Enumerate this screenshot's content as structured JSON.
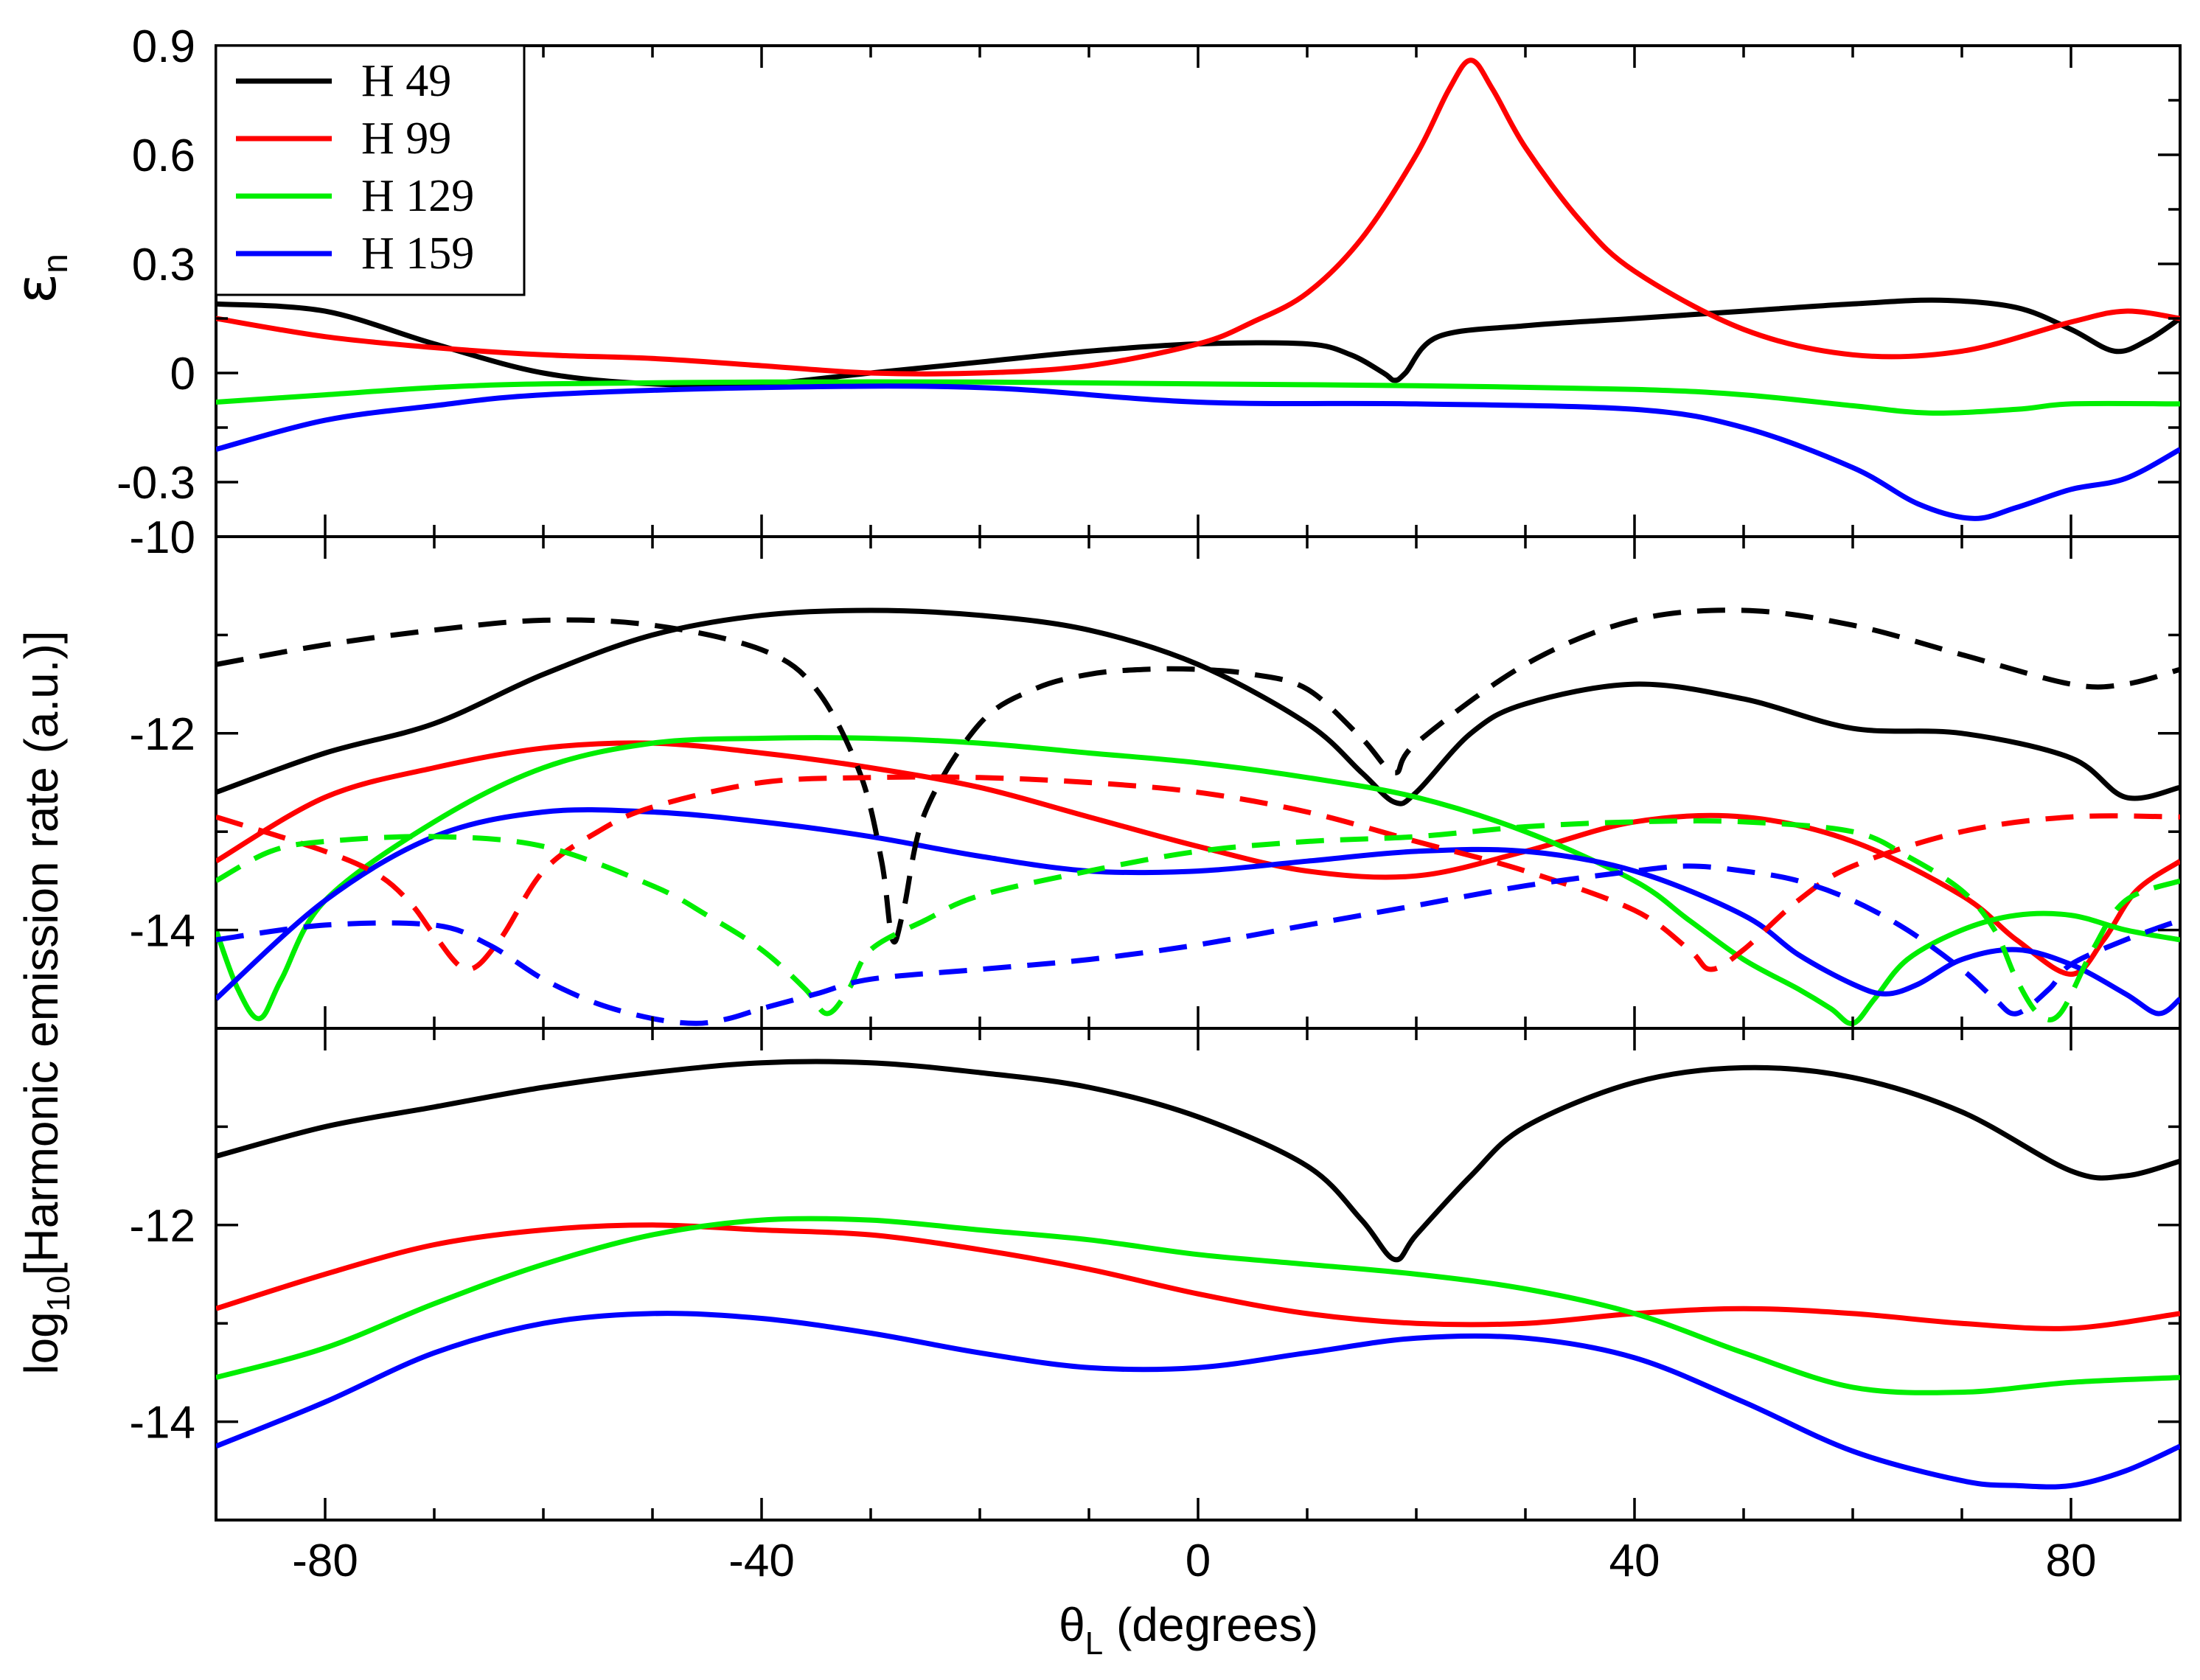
{
  "chart_data": {
    "type": "line",
    "x_label": "θ",
    "x_label_sub": "L",
    "x_label_unit": " (degrees)",
    "xlim": [
      -90,
      90
    ],
    "x_ticks": [
      -80,
      -40,
      0,
      40,
      80
    ],
    "x_tick_labels": [
      "-80",
      "-40",
      "0",
      "40",
      "80"
    ],
    "legend": [
      {
        "name": "H 49",
        "color": "#000000"
      },
      {
        "name": "H 99",
        "color": "#ff0000"
      },
      {
        "name": "H 129",
        "color": "#00ee00"
      },
      {
        "name": "H 159",
        "color": "#0000ff"
      }
    ],
    "panels": [
      {
        "id": "ellipticity",
        "ylabel": "ε",
        "ylabel_sub": "n",
        "ylim": [
          -0.45,
          0.9
        ],
        "y_ticks": [
          0.9,
          0.6,
          0.3,
          0,
          -0.3
        ],
        "y_tick_labels": [
          "0.9",
          "0.6",
          "0.3",
          "0",
          "-0.3"
        ],
        "series": [
          {
            "name": "H 49",
            "color": "#000000",
            "dash": false,
            "x": [
              -90,
              -80,
              -70,
              -60,
              -50,
              -40,
              -30,
              -20,
              -10,
              0,
              10,
              14,
              17,
              18,
              19,
              22,
              30,
              40,
              50,
              60,
              68,
              75,
              80,
              84,
              87,
              90
            ],
            "y": [
              0.19,
              0.17,
              0.08,
              0.0,
              -0.03,
              -0.03,
              0.0,
              0.03,
              0.06,
              0.08,
              0.08,
              0.05,
              0.0,
              -0.02,
              0.0,
              0.1,
              0.13,
              0.15,
              0.17,
              0.19,
              0.2,
              0.18,
              0.12,
              0.06,
              0.09,
              0.15
            ]
          },
          {
            "name": "H 99",
            "color": "#ff0000",
            "dash": false,
            "x": [
              -90,
              -80,
              -70,
              -60,
              -50,
              -40,
              -30,
              -20,
              -10,
              0,
              5,
              10,
              15,
              20,
              23,
              25,
              27,
              30,
              35,
              40,
              50,
              60,
              70,
              80,
              85,
              90
            ],
            "y": [
              0.15,
              0.1,
              0.07,
              0.05,
              0.04,
              0.02,
              0.0,
              0.0,
              0.02,
              0.08,
              0.14,
              0.22,
              0.37,
              0.6,
              0.78,
              0.86,
              0.78,
              0.62,
              0.42,
              0.28,
              0.12,
              0.05,
              0.06,
              0.14,
              0.17,
              0.15
            ]
          },
          {
            "name": "H 129",
            "color": "#00ee00",
            "dash": false,
            "x": [
              -90,
              -80,
              -70,
              -60,
              -40,
              -20,
              0,
              20,
              40,
              50,
              60,
              67,
              75,
              80,
              90
            ],
            "y": [
              -0.08,
              -0.06,
              -0.04,
              -0.03,
              -0.025,
              -0.025,
              -0.03,
              -0.035,
              -0.045,
              -0.06,
              -0.09,
              -0.11,
              -0.1,
              -0.085,
              -0.085
            ]
          },
          {
            "name": "H 159",
            "color": "#0000ff",
            "dash": false,
            "x": [
              -90,
              -80,
              -70,
              -60,
              -40,
              -20,
              0,
              20,
              40,
              50,
              60,
              66,
              71,
              75,
              80,
              85,
              90
            ],
            "y": [
              -0.21,
              -0.13,
              -0.09,
              -0.06,
              -0.04,
              -0.04,
              -0.08,
              -0.085,
              -0.1,
              -0.15,
              -0.26,
              -0.36,
              -0.4,
              -0.37,
              -0.32,
              -0.29,
              -0.21
            ]
          }
        ]
      },
      {
        "id": "emission-dashed",
        "ylim": [
          -15,
          -10
        ],
        "y_ticks": [
          -10,
          -12,
          -14
        ],
        "y_tick_labels": [
          "-10",
          "-12",
          "-14"
        ],
        "series": [
          {
            "name": "H 49",
            "color": "#000000",
            "dash": false,
            "x": [
              -90,
              -80,
              -70,
              -60,
              -50,
              -40,
              -30,
              -20,
              -10,
              0,
              10,
              15,
              18,
              20,
              25,
              30,
              40,
              50,
              60,
              70,
              80,
              85,
              90
            ],
            "y": [
              -12.6,
              -12.2,
              -11.9,
              -11.4,
              -11.0,
              -10.8,
              -10.75,
              -10.8,
              -10.95,
              -11.3,
              -11.9,
              -12.4,
              -12.7,
              -12.6,
              -12.0,
              -11.7,
              -11.5,
              -11.65,
              -11.95,
              -12.0,
              -12.25,
              -12.65,
              -12.55
            ]
          },
          {
            "name": "H 99",
            "color": "#ff0000",
            "dash": false,
            "x": [
              -90,
              -80,
              -70,
              -60,
              -50,
              -40,
              -30,
              -20,
              -10,
              0,
              10,
              20,
              30,
              40,
              50,
              60,
              70,
              75,
              80,
              83,
              86,
              90
            ],
            "y": [
              -13.3,
              -12.65,
              -12.35,
              -12.15,
              -12.1,
              -12.2,
              -12.35,
              -12.55,
              -12.85,
              -13.15,
              -13.4,
              -13.45,
              -13.2,
              -12.9,
              -12.85,
              -13.1,
              -13.65,
              -14.1,
              -14.45,
              -14.1,
              -13.6,
              -13.3
            ]
          },
          {
            "name": "H 129",
            "color": "#00ee00",
            "dash": false,
            "x": [
              -90,
              -88,
              -86,
              -84,
              -80,
              -70,
              -60,
              -50,
              -40,
              -30,
              -20,
              -10,
              0,
              10,
              20,
              30,
              40,
              45,
              50,
              55,
              58,
              60,
              62,
              65,
              70,
              75,
              80,
              85,
              90
            ],
            "y": [
              -14.0,
              -14.6,
              -14.9,
              -14.5,
              -13.7,
              -12.9,
              -12.35,
              -12.1,
              -12.05,
              -12.05,
              -12.1,
              -12.2,
              -12.3,
              -12.45,
              -12.65,
              -13.0,
              -13.5,
              -13.9,
              -14.3,
              -14.6,
              -14.8,
              -14.95,
              -14.7,
              -14.3,
              -14.0,
              -13.85,
              -13.85,
              -14.0,
              -14.1
            ]
          },
          {
            "name": "H 159",
            "color": "#0000ff",
            "dash": false,
            "x": [
              -90,
              -80,
              -70,
              -60,
              -50,
              -40,
              -30,
              -20,
              -10,
              0,
              10,
              20,
              30,
              40,
              50,
              55,
              60,
              63,
              66,
              70,
              75,
              80,
              85,
              88,
              90
            ],
            "y": [
              -14.7,
              -13.7,
              -13.05,
              -12.8,
              -12.8,
              -12.9,
              -13.05,
              -13.25,
              -13.4,
              -13.4,
              -13.3,
              -13.2,
              -13.2,
              -13.4,
              -13.85,
              -14.25,
              -14.55,
              -14.65,
              -14.55,
              -14.3,
              -14.2,
              -14.35,
              -14.65,
              -14.85,
              -14.7
            ]
          },
          {
            "name": "H 49",
            "color": "#000000",
            "dash": true,
            "x": [
              -90,
              -80,
              -70,
              -60,
              -50,
              -40,
              -35,
              -31,
              -29,
              -28,
              -27,
              -25,
              -20,
              -15,
              -10,
              -5,
              0,
              5,
              10,
              15,
              18,
              20,
              30,
              40,
              50,
              60,
              70,
              80,
              85,
              90
            ],
            "y": [
              -11.3,
              -11.1,
              -10.95,
              -10.85,
              -10.9,
              -11.15,
              -11.55,
              -12.4,
              -13.3,
              -14.1,
              -13.8,
              -12.8,
              -11.9,
              -11.55,
              -11.4,
              -11.35,
              -11.35,
              -11.4,
              -11.55,
              -12.05,
              -12.4,
              -12.1,
              -11.3,
              -10.85,
              -10.75,
              -10.9,
              -11.2,
              -11.5,
              -11.5,
              -11.35
            ]
          },
          {
            "name": "H 99",
            "color": "#ff0000",
            "dash": true,
            "x": [
              -90,
              -80,
              -75,
              -72,
              -70,
              -67,
              -64,
              -60,
              -55,
              -50,
              -40,
              -30,
              -20,
              -10,
              0,
              10,
              20,
              30,
              40,
              45,
              47,
              50,
              55,
              60,
              70,
              80,
              90
            ],
            "y": [
              -12.85,
              -13.2,
              -13.45,
              -13.75,
              -14.05,
              -14.4,
              -14.1,
              -13.4,
              -13.0,
              -12.75,
              -12.5,
              -12.45,
              -12.45,
              -12.5,
              -12.6,
              -12.8,
              -13.1,
              -13.4,
              -13.8,
              -14.2,
              -14.4,
              -14.2,
              -13.7,
              -13.35,
              -13.0,
              -12.85,
              -12.85
            ]
          },
          {
            "name": "H 129",
            "color": "#00ee00",
            "dash": true,
            "x": [
              -90,
              -85,
              -80,
              -70,
              -60,
              -50,
              -45,
              -40,
              -36,
              -34,
              -32,
              -30,
              -25,
              -20,
              -10,
              0,
              10,
              20,
              30,
              40,
              50,
              60,
              65,
              70,
              73,
              75,
              77,
              79,
              82,
              85,
              90
            ],
            "y": [
              -13.5,
              -13.2,
              -13.1,
              -13.05,
              -13.15,
              -13.55,
              -13.85,
              -14.2,
              -14.6,
              -14.85,
              -14.6,
              -14.2,
              -13.9,
              -13.65,
              -13.4,
              -13.2,
              -13.1,
              -13.05,
              -12.95,
              -12.9,
              -12.9,
              -13.0,
              -13.25,
              -13.6,
              -14.0,
              -14.5,
              -14.85,
              -14.85,
              -14.2,
              -13.7,
              -13.5
            ]
          },
          {
            "name": "H 159",
            "color": "#0000ff",
            "dash": true,
            "x": [
              -90,
              -80,
              -70,
              -65,
              -60,
              -55,
              -50,
              -46,
              -43,
              -40,
              -35,
              -30,
              -20,
              -10,
              0,
              10,
              20,
              30,
              40,
              45,
              50,
              55,
              60,
              65,
              70,
              73,
              75,
              78,
              80,
              85,
              90
            ],
            "y": [
              -14.1,
              -13.95,
              -13.95,
              -14.15,
              -14.5,
              -14.75,
              -14.9,
              -14.95,
              -14.9,
              -14.8,
              -14.65,
              -14.5,
              -14.4,
              -14.3,
              -14.15,
              -13.95,
              -13.75,
              -13.55,
              -13.4,
              -13.35,
              -13.4,
              -13.5,
              -13.7,
              -14.0,
              -14.4,
              -14.7,
              -14.85,
              -14.6,
              -14.35,
              -14.1,
              -13.9
            ]
          }
        ]
      },
      {
        "id": "emission-bottom",
        "ylim": [
          -15,
          -10
        ],
        "y_ticks": [
          -12,
          -14
        ],
        "y_tick_labels": [
          "-12",
          "-14"
        ],
        "ylabel": "log",
        "ylabel_sub": "10",
        "ylabel_rest": "[Harmonic emission rate (a.u.)]",
        "series": [
          {
            "name": "H 49",
            "color": "#000000",
            "dash": false,
            "x": [
              -90,
              -80,
              -70,
              -60,
              -50,
              -40,
              -30,
              -20,
              -10,
              0,
              10,
              15,
              18,
              20,
              25,
              30,
              40,
              50,
              60,
              70,
              80,
              85,
              90
            ],
            "y": [
              -11.3,
              -11.0,
              -10.8,
              -10.6,
              -10.45,
              -10.35,
              -10.35,
              -10.45,
              -10.6,
              -10.9,
              -11.4,
              -11.95,
              -12.35,
              -12.1,
              -11.5,
              -11.0,
              -10.55,
              -10.4,
              -10.5,
              -10.85,
              -11.45,
              -11.5,
              -11.35
            ]
          },
          {
            "name": "H 99",
            "color": "#ff0000",
            "dash": false,
            "x": [
              -90,
              -80,
              -70,
              -60,
              -50,
              -40,
              -30,
              -20,
              -10,
              0,
              10,
              20,
              30,
              40,
              50,
              60,
              70,
              80,
              90
            ],
            "y": [
              -12.85,
              -12.5,
              -12.2,
              -12.05,
              -12.0,
              -12.05,
              -12.1,
              -12.25,
              -12.45,
              -12.7,
              -12.9,
              -13.0,
              -13.0,
              -12.9,
              -12.85,
              -12.9,
              -13.0,
              -13.05,
              -12.9
            ]
          },
          {
            "name": "H 129",
            "color": "#00ee00",
            "dash": false,
            "x": [
              -90,
              -80,
              -70,
              -60,
              -50,
              -40,
              -30,
              -20,
              -10,
              0,
              10,
              20,
              30,
              40,
              50,
              60,
              70,
              80,
              90
            ],
            "y": [
              -13.55,
              -13.25,
              -12.8,
              -12.4,
              -12.1,
              -11.95,
              -11.95,
              -12.05,
              -12.15,
              -12.3,
              -12.4,
              -12.5,
              -12.65,
              -12.9,
              -13.3,
              -13.65,
              -13.7,
              -13.6,
              -13.55
            ]
          },
          {
            "name": "H 159",
            "color": "#0000ff",
            "dash": false,
            "x": [
              -90,
              -80,
              -70,
              -60,
              -50,
              -40,
              -30,
              -20,
              -10,
              0,
              10,
              20,
              30,
              40,
              50,
              60,
              70,
              75,
              80,
              85,
              90
            ],
            "y": [
              -14.25,
              -13.8,
              -13.3,
              -13.0,
              -12.9,
              -12.95,
              -13.1,
              -13.3,
              -13.45,
              -13.45,
              -13.3,
              -13.15,
              -13.15,
              -13.35,
              -13.8,
              -14.3,
              -14.6,
              -14.65,
              -14.65,
              -14.5,
              -14.25
            ]
          }
        ]
      }
    ]
  }
}
